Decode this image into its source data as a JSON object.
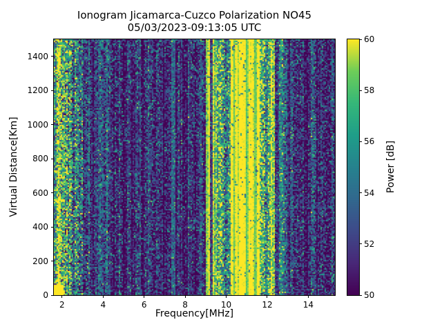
{
  "header": {
    "title_line1": "Ionogram Jicamarca-Cuzco Polarization NO45",
    "title_line2": "05/03/2023-09:13:05 UTC"
  },
  "chart_data": {
    "type": "heatmap",
    "title": "Ionogram Jicamarca-Cuzco Polarization NO45",
    "subtitle": "05/03/2023-09:13:05 UTC",
    "xlabel": "Frequency[MHz]",
    "ylabel": "Virtual Distance[Km]",
    "xlim": [
      1.6,
      15.3
    ],
    "ylim": [
      0,
      1500
    ],
    "xticks": [
      2,
      4,
      6,
      8,
      10,
      12,
      14
    ],
    "yticks": [
      0,
      200,
      400,
      600,
      800,
      1000,
      1200,
      1400
    ],
    "grid": false,
    "legend": "none",
    "colorbar": {
      "label": "Power [dB]",
      "min": 50,
      "max": 60,
      "ticks": [
        50,
        52,
        54,
        56,
        58,
        60
      ],
      "colormap": "viridis"
    },
    "colormap_anchors_rgb": [
      [
        68,
        1,
        84
      ],
      [
        72,
        40,
        120
      ],
      [
        62,
        74,
        137
      ],
      [
        49,
        104,
        142
      ],
      [
        38,
        130,
        142
      ],
      [
        31,
        158,
        137
      ],
      [
        53,
        183,
        121
      ],
      [
        109,
        205,
        89
      ],
      [
        253,
        231,
        37
      ]
    ],
    "value_units": "dB",
    "bands": [
      {
        "f0": 1.6,
        "f1": 1.72,
        "base": 55.0,
        "noise": 4.5,
        "speck_p": 0.2,
        "speck_amp": 5.0
      },
      {
        "f0": 1.72,
        "f1": 2.15,
        "base": 59.3,
        "noise": 2.2,
        "speck_p": 0.25,
        "speck_amp": -8.0
      },
      {
        "f0": 2.15,
        "f1": 2.5,
        "base": 57.5,
        "noise": 3.5,
        "speck_p": 0.3,
        "speck_amp": -7.0
      },
      {
        "f0": 2.5,
        "f1": 3.0,
        "base": 54.0,
        "noise": 4.2,
        "speck_p": 0.2,
        "speck_amp": 5.0
      },
      {
        "f0": 3.0,
        "f1": 3.4,
        "base": 52.3,
        "noise": 3.2,
        "speck_p": 0.12,
        "speck_amp": 5.0
      },
      {
        "f0": 3.4,
        "f1": 3.75,
        "base": 51.0,
        "noise": 2.2,
        "speck_p": 0.15,
        "speck_amp": 4.5
      },
      {
        "f0": 3.75,
        "f1": 4.3,
        "base": 52.8,
        "noise": 3.0,
        "speck_p": 0.15,
        "speck_amp": 4.0
      },
      {
        "f0": 4.3,
        "f1": 6.3,
        "base": 50.8,
        "noise": 1.8,
        "speck_p": 0.18,
        "speck_amp": 5.8
      },
      {
        "f0": 6.3,
        "f1": 7.3,
        "base": 51.0,
        "noise": 2.2,
        "speck_p": 0.2,
        "speck_amp": 5.2
      },
      {
        "f0": 7.3,
        "f1": 7.5,
        "base": 54.0,
        "noise": 2.2,
        "speck_p": 0.15,
        "speck_amp": 4.0
      },
      {
        "f0": 7.5,
        "f1": 9.0,
        "base": 50.8,
        "noise": 2.0,
        "speck_p": 0.18,
        "speck_amp": 5.8
      },
      {
        "f0": 9.0,
        "f1": 9.2,
        "base": 59.8,
        "noise": 0.8,
        "speck_p": 0.1,
        "speck_amp": -6.0
      },
      {
        "f0": 9.2,
        "f1": 9.35,
        "base": 50.8,
        "noise": 1.4,
        "speck_p": 0.2,
        "speck_amp": 5.0
      },
      {
        "f0": 9.35,
        "f1": 9.55,
        "base": 59.3,
        "noise": 1.5,
        "speck_p": 0.15,
        "speck_amp": -6.0
      },
      {
        "f0": 9.55,
        "f1": 10.2,
        "base": 55.5,
        "noise": 4.2,
        "speck_p": 0.25,
        "speck_amp": 4.0
      },
      {
        "f0": 10.2,
        "f1": 11.65,
        "base": 60.2,
        "noise": 0.7,
        "speck_p": 0.05,
        "speck_amp": -7.0
      },
      {
        "f0": 11.65,
        "f1": 12.15,
        "base": 57.3,
        "noise": 3.8,
        "speck_p": 0.2,
        "speck_amp": -5.0
      },
      {
        "f0": 12.15,
        "f1": 12.35,
        "base": 58.8,
        "noise": 2.2,
        "speck_p": 0.15,
        "speck_amp": -6.0
      },
      {
        "f0": 12.35,
        "f1": 12.6,
        "base": 51.3,
        "noise": 2.2,
        "speck_p": 0.15,
        "speck_amp": 5.0
      },
      {
        "f0": 12.6,
        "f1": 13.0,
        "base": 53.5,
        "noise": 3.2,
        "speck_p": 0.2,
        "speck_amp": 4.5
      },
      {
        "f0": 13.0,
        "f1": 15.3,
        "base": 51.0,
        "noise": 2.4,
        "speck_p": 0.2,
        "speck_amp": 5.2
      }
    ],
    "column_jitter_db": 1.2,
    "stripe_wave_db": 0.8,
    "bottom_boost": {
      "f0": 1.6,
      "f1": 2.1,
      "km_max": 60,
      "value_db": 60.5
    },
    "seed": 20230503
  }
}
